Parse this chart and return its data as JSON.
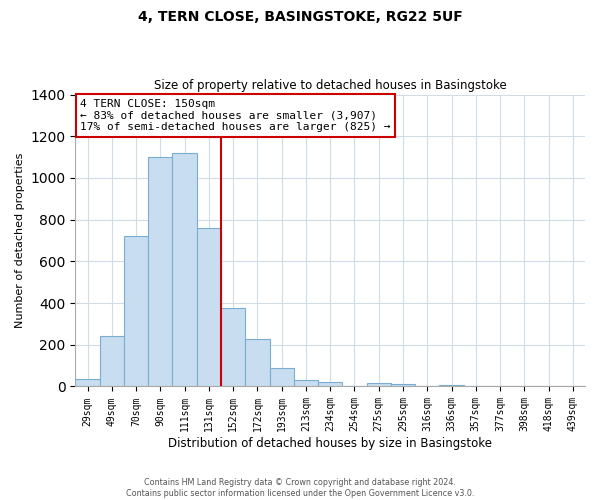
{
  "title": "4, TERN CLOSE, BASINGSTOKE, RG22 5UF",
  "subtitle": "Size of property relative to detached houses in Basingstoke",
  "xlabel": "Distribution of detached houses by size in Basingstoke",
  "ylabel": "Number of detached properties",
  "bar_labels": [
    "29sqm",
    "49sqm",
    "70sqm",
    "90sqm",
    "111sqm",
    "131sqm",
    "152sqm",
    "172sqm",
    "193sqm",
    "213sqm",
    "234sqm",
    "254sqm",
    "275sqm",
    "295sqm",
    "316sqm",
    "336sqm",
    "357sqm",
    "377sqm",
    "398sqm",
    "418sqm",
    "439sqm"
  ],
  "bar_values": [
    35,
    240,
    720,
    1100,
    1120,
    760,
    375,
    230,
    90,
    30,
    20,
    0,
    15,
    10,
    0,
    5,
    0,
    0,
    0,
    0,
    0
  ],
  "bar_color": "#c8ddf0",
  "bar_edge_color": "#7aaed0",
  "vline_color": "#cc0000",
  "annotation_title": "4 TERN CLOSE: 150sqm",
  "annotation_line1": "← 83% of detached houses are smaller (3,907)",
  "annotation_line2": "17% of semi-detached houses are larger (825) →",
  "annotation_box_edge": "#cc0000",
  "ylim": [
    0,
    1400
  ],
  "yticks": [
    0,
    200,
    400,
    600,
    800,
    1000,
    1200,
    1400
  ],
  "grid_color": "#d0dce8",
  "footer1": "Contains HM Land Registry data © Crown copyright and database right 2024.",
  "footer2": "Contains public sector information licensed under the Open Government Licence v3.0."
}
